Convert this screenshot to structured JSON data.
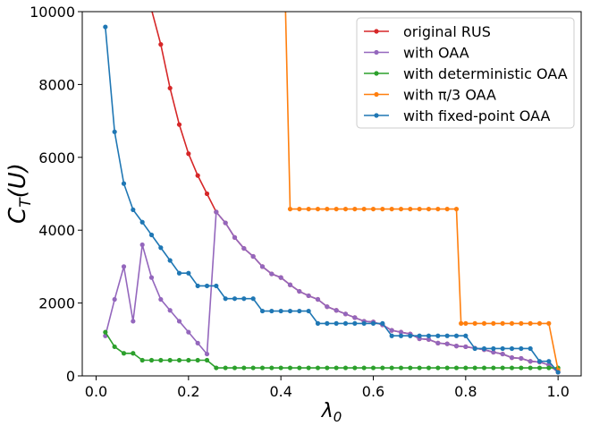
{
  "chart_data": {
    "type": "line",
    "title": "",
    "xlabel": "λ0",
    "ylabel": "C_T(U)",
    "xlim": [
      -0.03,
      1.05
    ],
    "ylim": [
      0,
      10000
    ],
    "xticks": [
      0.0,
      0.2,
      0.4,
      0.6,
      0.8,
      1.0
    ],
    "xtick_labels": [
      "0.0",
      "0.2",
      "0.4",
      "0.6",
      "0.8",
      "1.0"
    ],
    "yticks": [
      0,
      2000,
      4000,
      6000,
      8000,
      10000
    ],
    "ytick_labels": [
      "0",
      "2000",
      "4000",
      "6000",
      "8000",
      "10000"
    ],
    "grid": false,
    "legend_position": "top-right",
    "series": [
      {
        "name": "original RUS",
        "color": "#d62728",
        "x": [
          0.12,
          0.14,
          0.16,
          0.18,
          0.2,
          0.22,
          0.24,
          0.26,
          0.28,
          0.3,
          0.32,
          0.34,
          0.36,
          0.38,
          0.4,
          0.42,
          0.44,
          0.46,
          0.48,
          0.5,
          0.52,
          0.54,
          0.56,
          0.58,
          0.6,
          0.62,
          0.64,
          0.66,
          0.68,
          0.7,
          0.72,
          0.74,
          0.76,
          0.78,
          0.8,
          0.82,
          0.84,
          0.86,
          0.88,
          0.9,
          0.92,
          0.94,
          0.96,
          0.98,
          1.0
        ],
        "y": [
          10050,
          9100,
          7900,
          6900,
          6100,
          5500,
          5000,
          4500,
          4200,
          3800,
          3500,
          3280,
          3000,
          2800,
          2700,
          2500,
          2320,
          2200,
          2100,
          1900,
          1800,
          1700,
          1600,
          1500,
          1480,
          1400,
          1250,
          1200,
          1150,
          1020,
          1000,
          900,
          880,
          820,
          800,
          760,
          720,
          650,
          600,
          500,
          480,
          400,
          380,
          300,
          100
        ]
      },
      {
        "name": "with OAA",
        "color": "#9467bd",
        "x": [
          0.02,
          0.04,
          0.06,
          0.08,
          0.1,
          0.12,
          0.14,
          0.16,
          0.18,
          0.2,
          0.22,
          0.24,
          0.26,
          0.28,
          0.3,
          0.32,
          0.34,
          0.36,
          0.38,
          0.4,
          0.42,
          0.44,
          0.46,
          0.48,
          0.5,
          0.52,
          0.54,
          0.56,
          0.58,
          0.6,
          0.62,
          0.64,
          0.66,
          0.68,
          0.7,
          0.72,
          0.74,
          0.76,
          0.78,
          0.8,
          0.82,
          0.84,
          0.86,
          0.88,
          0.9,
          0.92,
          0.94,
          0.96,
          0.98,
          1.0
        ],
        "y": [
          1100,
          2100,
          3000,
          1500,
          3600,
          2700,
          2100,
          1800,
          1500,
          1200,
          900,
          600,
          4500,
          4200,
          3800,
          3500,
          3280,
          3000,
          2800,
          2700,
          2500,
          2320,
          2200,
          2100,
          1900,
          1800,
          1700,
          1600,
          1500,
          1480,
          1400,
          1250,
          1200,
          1150,
          1020,
          1000,
          900,
          880,
          820,
          800,
          760,
          720,
          650,
          600,
          500,
          480,
          400,
          380,
          300,
          100
        ]
      },
      {
        "name": "with deterministic OAA",
        "color": "#2ca02c",
        "x": [
          0.02,
          0.04,
          0.06,
          0.08,
          0.1,
          0.12,
          0.14,
          0.16,
          0.18,
          0.2,
          0.22,
          0.24,
          0.26,
          0.28,
          0.3,
          0.32,
          0.34,
          0.36,
          0.38,
          0.4,
          0.42,
          0.44,
          0.46,
          0.48,
          0.5,
          0.52,
          0.54,
          0.56,
          0.58,
          0.6,
          0.62,
          0.64,
          0.66,
          0.68,
          0.7,
          0.72,
          0.74,
          0.76,
          0.78,
          0.8,
          0.82,
          0.84,
          0.86,
          0.88,
          0.9,
          0.92,
          0.94,
          0.96,
          0.98,
          1.0
        ],
        "y": [
          1200,
          800,
          620,
          620,
          430,
          430,
          430,
          430,
          430,
          430,
          430,
          430,
          220,
          220,
          220,
          220,
          220,
          220,
          220,
          220,
          220,
          220,
          220,
          220,
          220,
          220,
          220,
          220,
          220,
          220,
          220,
          220,
          220,
          220,
          220,
          220,
          220,
          220,
          220,
          220,
          220,
          220,
          220,
          220,
          220,
          220,
          220,
          220,
          220,
          220
        ]
      },
      {
        "name": "with π/3 OAA",
        "color": "#ff7f0e",
        "x": [
          0.41,
          0.42,
          0.44,
          0.46,
          0.48,
          0.5,
          0.52,
          0.54,
          0.56,
          0.58,
          0.6,
          0.62,
          0.64,
          0.66,
          0.68,
          0.7,
          0.72,
          0.74,
          0.76,
          0.78,
          0.79,
          0.8,
          0.82,
          0.84,
          0.86,
          0.88,
          0.9,
          0.92,
          0.94,
          0.96,
          0.98,
          1.0
        ],
        "y": [
          10050,
          4580,
          4580,
          4580,
          4580,
          4580,
          4580,
          4580,
          4580,
          4580,
          4580,
          4580,
          4580,
          4580,
          4580,
          4580,
          4580,
          4580,
          4580,
          4580,
          1440,
          1440,
          1440,
          1440,
          1440,
          1440,
          1440,
          1440,
          1440,
          1440,
          1440,
          160
        ]
      },
      {
        "name": "with fixed-point OAA",
        "color": "#1f77b4",
        "x": [
          0.02,
          0.04,
          0.06,
          0.08,
          0.1,
          0.12,
          0.14,
          0.16,
          0.18,
          0.2,
          0.22,
          0.24,
          0.26,
          0.28,
          0.3,
          0.32,
          0.34,
          0.36,
          0.38,
          0.4,
          0.42,
          0.44,
          0.46,
          0.48,
          0.5,
          0.52,
          0.54,
          0.56,
          0.58,
          0.6,
          0.62,
          0.64,
          0.66,
          0.68,
          0.7,
          0.72,
          0.74,
          0.76,
          0.78,
          0.8,
          0.82,
          0.84,
          0.86,
          0.88,
          0.9,
          0.92,
          0.94,
          0.96,
          0.98,
          1.0
        ],
        "y": [
          9580,
          6700,
          5280,
          4560,
          4220,
          3870,
          3520,
          3170,
          2820,
          2820,
          2470,
          2470,
          2470,
          2120,
          2120,
          2120,
          2120,
          1780,
          1780,
          1780,
          1780,
          1780,
          1780,
          1440,
          1440,
          1440,
          1440,
          1440,
          1440,
          1440,
          1440,
          1100,
          1100,
          1100,
          1100,
          1100,
          1100,
          1100,
          1100,
          1100,
          750,
          750,
          750,
          750,
          750,
          750,
          750,
          400,
          400,
          100
        ]
      }
    ]
  }
}
